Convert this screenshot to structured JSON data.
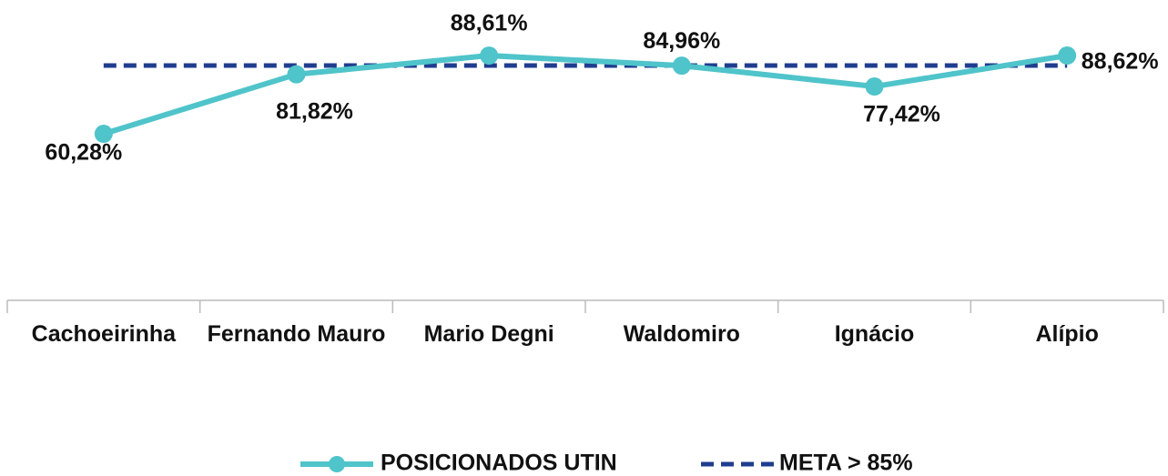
{
  "chart_data": {
    "type": "line",
    "categories": [
      "Cachoeirinha",
      "Fernando Mauro",
      "Mario Degni",
      "Waldomiro",
      "Ignácio",
      "Alípio"
    ],
    "series": [
      {
        "name": "POSICIONADOS UTIN",
        "color": "#4fc4ca",
        "values": [
          60.28,
          81.82,
          88.61,
          84.96,
          77.42,
          88.62
        ],
        "value_labels": [
          "60,28%",
          "81,82%",
          "88,61%",
          "84,96%",
          "77,42%",
          "88,62%"
        ]
      },
      {
        "name": "META > 85%",
        "color": "#1f3d8f",
        "dashed": true,
        "values": [
          85,
          85,
          85,
          85,
          85,
          85
        ]
      }
    ],
    "ylim": [
      0,
      100
    ],
    "grid": false,
    "legend": "bottom"
  }
}
